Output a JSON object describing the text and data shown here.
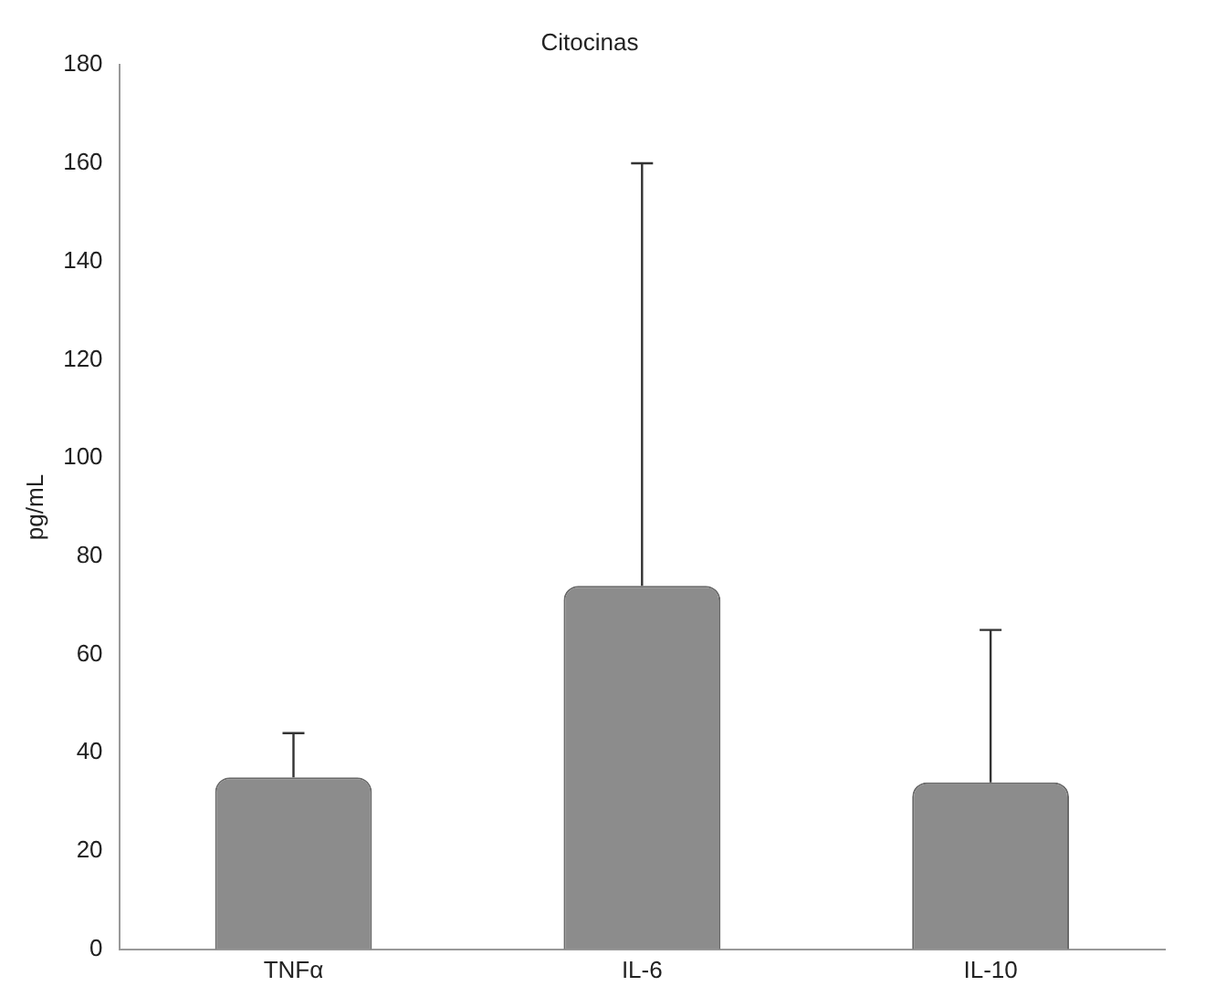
{
  "chart_data": {
    "type": "bar",
    "title": "Citocinas",
    "ylabel": "pg/mL",
    "categories": [
      "TNFα",
      "IL-6",
      "IL-10"
    ],
    "values": [
      35,
      74,
      34
    ],
    "errors": [
      [
        35,
        44
      ],
      [
        74,
        160
      ],
      [
        34,
        65
      ]
    ],
    "color": "#8c8c8c",
    "ylim": [
      0,
      180
    ],
    "yticks": [
      0,
      20,
      40,
      60,
      80,
      100,
      120,
      140,
      160,
      180
    ],
    "grid": false,
    "legend": false
  }
}
